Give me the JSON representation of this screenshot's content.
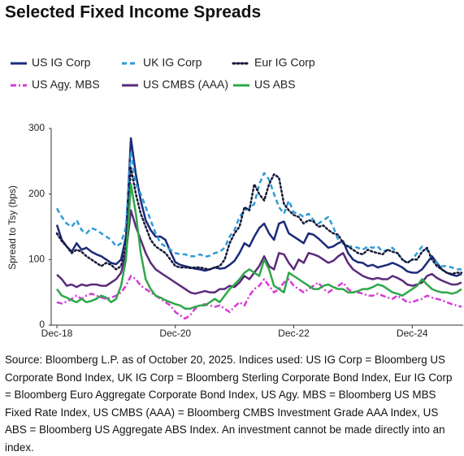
{
  "chart_data": {
    "type": "line",
    "title": "Selected Fixed Income Spreads",
    "y_label": "Spread to Tsy (bps)",
    "source": "Source: Bloomberg L.P. as of October 20, 2025. Indices used: US IG Corp = Bloomberg US Corporate Bond Index, UK IG Corp = Bloomberg Sterling Corporate Bond Index, Eur IG Corp = Bloomberg Euro Aggregate Corporate Bond Index, US Agy. MBS = Bloomberg US MBS Fixed Rate Index, US CMBS (AAA) = Bloomberg CMBS Investment Grade AAA Index, US ABS = Bloomberg US Aggregate ABS Index. An investment cannot be made directly into an index.",
    "categories": [
      "Dec-18",
      null,
      null,
      null,
      null,
      null,
      null,
      null,
      null,
      null,
      null,
      null,
      null,
      null,
      null,
      null,
      null,
      null,
      null,
      null,
      null,
      null,
      null,
      null,
      "Dec-20",
      null,
      null,
      null,
      null,
      null,
      null,
      null,
      null,
      null,
      null,
      null,
      null,
      null,
      null,
      null,
      null,
      null,
      null,
      null,
      null,
      null,
      null,
      null,
      "Dec-22",
      null,
      null,
      null,
      null,
      null,
      null,
      null,
      null,
      null,
      null,
      null,
      null,
      null,
      null,
      null,
      null,
      null,
      null,
      null,
      null,
      null,
      null,
      null,
      "Dec-24",
      null,
      null,
      null,
      null,
      null,
      null,
      null,
      null,
      null,
      null
    ],
    "ylim": [
      0,
      300
    ],
    "yticks": [
      0,
      100,
      200,
      300
    ],
    "grid": false,
    "series": [
      {
        "name": "US IG Corp",
        "color": "#1b2a7a",
        "style": "solid",
        "values": [
          153,
          130,
          120,
          112,
          125,
          115,
          118,
          112,
          108,
          105,
          100,
          95,
          93,
          100,
          135,
          285,
          230,
          190,
          160,
          145,
          135,
          135,
          130,
          112,
          96,
          92,
          90,
          88,
          86,
          85,
          83,
          85,
          88,
          86,
          87,
          92,
          98,
          110,
          125,
          120,
          135,
          148,
          155,
          140,
          130,
          155,
          158,
          140,
          135,
          130,
          125,
          140,
          138,
          132,
          125,
          118,
          120,
          125,
          128,
          110,
          100,
          96,
          95,
          90,
          92,
          88,
          90,
          92,
          95,
          92,
          88,
          82,
          80,
          80,
          85,
          95,
          105,
          95,
          85,
          80,
          77,
          75,
          78
        ]
      },
      {
        "name": "UK IG Corp",
        "color": "#2e9bd6",
        "style": "dashed",
        "values": [
          178,
          165,
          155,
          150,
          160,
          145,
          140,
          148,
          145,
          140,
          135,
          130,
          120,
          125,
          150,
          265,
          215,
          200,
          180,
          160,
          140,
          125,
          120,
          115,
          110,
          108,
          108,
          105,
          105,
          108,
          104,
          106,
          110,
          112,
          118,
          135,
          145,
          165,
          175,
          178,
          185,
          215,
          232,
          222,
          200,
          180,
          170,
          190,
          172,
          170,
          165,
          170,
          160,
          155,
          160,
          165,
          150,
          130,
          125,
          120,
          120,
          118,
          115,
          120,
          118,
          120,
          112,
          115,
          118,
          110,
          100,
          95,
          100,
          110,
          120,
          115,
          100,
          95,
          90,
          90,
          88,
          85,
          85
        ]
      },
      {
        "name": "Eur IG Corp",
        "color": "#141a3a",
        "style": "dotted",
        "values": [
          140,
          128,
          120,
          110,
          115,
          112,
          105,
          100,
          95,
          90,
          95,
          92,
          85,
          90,
          120,
          240,
          200,
          170,
          150,
          130,
          120,
          115,
          110,
          100,
          90,
          88,
          88,
          87,
          88,
          88,
          86,
          85,
          88,
          90,
          100,
          125,
          140,
          150,
          180,
          175,
          215,
          200,
          190,
          215,
          230,
          225,
          185,
          175,
          168,
          165,
          155,
          160,
          158,
          150,
          152,
          145,
          140,
          138,
          125,
          120,
          115,
          110,
          108,
          115,
          112,
          110,
          108,
          115,
          112,
          110,
          100,
          95,
          100,
          100,
          112,
          118,
          100,
          90,
          85,
          80,
          78,
          80,
          80
        ]
      },
      {
        "name": "US Agy. MBS",
        "color": "#d63ad6",
        "style": "dashdot",
        "values": [
          35,
          33,
          36,
          40,
          45,
          40,
          45,
          48,
          45,
          42,
          40,
          42,
          45,
          50,
          60,
          75,
          70,
          60,
          55,
          50,
          45,
          40,
          35,
          30,
          20,
          15,
          10,
          15,
          25,
          30,
          32,
          30,
          28,
          30,
          25,
          20,
          28,
          35,
          30,
          45,
          55,
          60,
          70,
          60,
          50,
          55,
          65,
          70,
          60,
          55,
          50,
          55,
          60,
          65,
          55,
          50,
          55,
          60,
          65,
          55,
          50,
          50,
          48,
          45,
          45,
          48,
          45,
          42,
          40,
          45,
          40,
          35,
          35,
          38,
          40,
          45,
          42,
          40,
          38,
          35,
          32,
          30,
          28
        ]
      },
      {
        "name": "US CMBS (AAA)",
        "color": "#5a2a7a",
        "style": "solid",
        "values": [
          77,
          70,
          60,
          62,
          58,
          62,
          60,
          62,
          62,
          60,
          60,
          65,
          70,
          80,
          110,
          175,
          150,
          130,
          110,
          95,
          85,
          80,
          75,
          70,
          65,
          60,
          55,
          50,
          48,
          50,
          52,
          50,
          50,
          55,
          55,
          60,
          58,
          65,
          75,
          70,
          80,
          90,
          105,
          90,
          85,
          110,
          108,
          95,
          85,
          100,
          95,
          110,
          108,
          105,
          100,
          95,
          98,
          105,
          110,
          95,
          85,
          80,
          75,
          72,
          70,
          72,
          70,
          70,
          75,
          72,
          68,
          62,
          60,
          62,
          65,
          75,
          78,
          72,
          68,
          65,
          62,
          62,
          65
        ]
      },
      {
        "name": "US ABS",
        "color": "#2ea84a",
        "style": "solid",
        "values": [
          55,
          45,
          42,
          38,
          35,
          40,
          35,
          37,
          40,
          45,
          42,
          35,
          40,
          60,
          100,
          215,
          170,
          110,
          70,
          55,
          45,
          42,
          38,
          35,
          32,
          30,
          25,
          25,
          28,
          30,
          30,
          35,
          40,
          35,
          45,
          55,
          62,
          70,
          80,
          85,
          80,
          75,
          100,
          85,
          60,
          55,
          50,
          80,
          75,
          70,
          65,
          60,
          55,
          55,
          60,
          62,
          58,
          55,
          55,
          50,
          50,
          52,
          55,
          55,
          58,
          62,
          60,
          55,
          50,
          48,
          45,
          50,
          55,
          60,
          70,
          62,
          55,
          52,
          50,
          50,
          48,
          50,
          55
        ]
      }
    ]
  }
}
